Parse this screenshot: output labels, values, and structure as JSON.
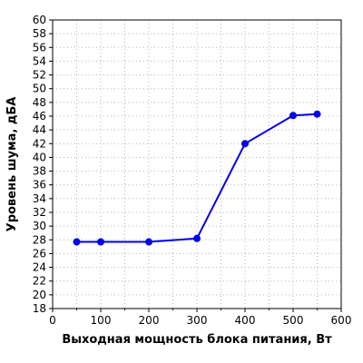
{
  "chart_data": {
    "type": "line",
    "title": "",
    "xlabel": "Выходная мощность блока питания, Вт",
    "ylabel": "Уровень шума, дБА",
    "xlim": [
      0,
      600
    ],
    "ylim": [
      18,
      60
    ],
    "x_ticks": [
      0,
      100,
      200,
      300,
      400,
      500,
      600
    ],
    "y_ticks": [
      18,
      20,
      22,
      24,
      26,
      28,
      30,
      32,
      34,
      36,
      38,
      40,
      42,
      44,
      46,
      48,
      50,
      52,
      54,
      56,
      58,
      60
    ],
    "grid": true,
    "legend": "none",
    "series": [
      {
        "color": "#0000ee",
        "x": [
          50,
          100,
          200,
          300,
          400,
          500,
          550
        ],
        "y": [
          27.7,
          27.7,
          27.7,
          28.2,
          42.0,
          46.1,
          46.3
        ]
      }
    ]
  }
}
